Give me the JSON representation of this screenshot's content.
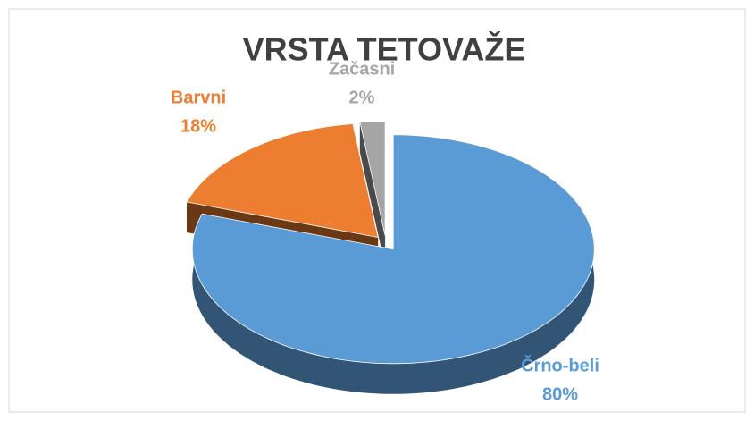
{
  "chart_data": {
    "type": "pie",
    "title": "VRSTA TETOVAŽE",
    "categories": [
      "Črno-beli",
      "Barvni",
      "Začasni"
    ],
    "values": [
      80,
      18,
      2
    ],
    "value_labels": [
      "80%",
      "18%",
      "2%"
    ],
    "colors": [
      "#5b9bd5",
      "#ed7d31",
      "#a5a5a5"
    ]
  }
}
